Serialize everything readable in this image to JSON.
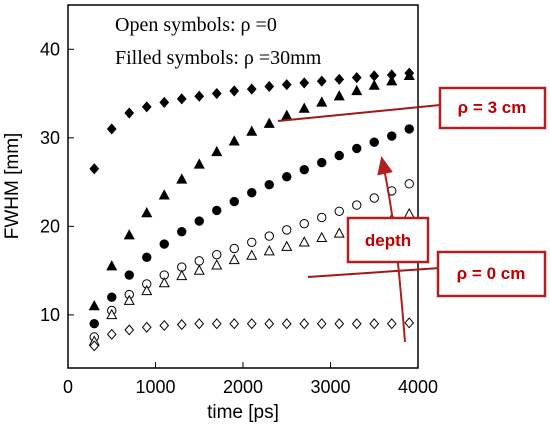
{
  "chart_data": {
    "type": "scatter",
    "x_label": "time  [ps]",
    "y_label": "FWHM  [mm]",
    "annotations": [
      "Open symbols: ρ =0",
      "Filled symbols: ρ =30mm",
      "ρ = 3 cm",
      "depth",
      "ρ = 0 cm"
    ],
    "xlim": [
      0,
      4000
    ],
    "ylim": [
      4,
      45
    ],
    "xticks": [
      0,
      1000,
      2000,
      3000,
      4000
    ],
    "yticks": [
      10,
      20,
      30,
      40
    ],
    "x": [
      300,
      500,
      700,
      900,
      1100,
      1300,
      1500,
      1700,
      1900,
      2100,
      2300,
      2500,
      2700,
      2900,
      3100,
      3300,
      3500,
      3700,
      3900
    ],
    "series": [
      {
        "marker": "diamond",
        "filled": true,
        "color": "#000000",
        "values": [
          26.5,
          31.0,
          32.8,
          33.5,
          34.0,
          34.4,
          34.7,
          35.0,
          35.3,
          35.5,
          35.8,
          36.0,
          36.2,
          36.4,
          36.6,
          36.8,
          37.0,
          37.1,
          37.3
        ]
      },
      {
        "marker": "triangle",
        "filled": true,
        "color": "#000000",
        "values": [
          11,
          15.5,
          19,
          21.5,
          23.5,
          25.3,
          27,
          28.4,
          29.6,
          30.7,
          31.6,
          32.5,
          33.3,
          34.0,
          34.7,
          35.3,
          35.9,
          36.4,
          37.0
        ]
      },
      {
        "marker": "circle",
        "filled": true,
        "color": "#000000",
        "values": [
          9,
          12,
          14.5,
          16.5,
          18,
          19.4,
          20.6,
          21.8,
          22.8,
          23.8,
          24.7,
          25.6,
          26.4,
          27.2,
          28.0,
          28.8,
          29.5,
          30.2,
          31.0
        ]
      },
      {
        "marker": "circle",
        "filled": false,
        "color": "#000000",
        "values": [
          7.5,
          10.5,
          12.3,
          13.5,
          14.5,
          15.4,
          16.1,
          16.8,
          17.5,
          18.2,
          18.9,
          19.6,
          20.3,
          21.0,
          21.7,
          22.4,
          23.2,
          24.0,
          24.8
        ]
      },
      {
        "marker": "triangle",
        "filled": false,
        "color": "#000000",
        "values": [
          7,
          10,
          11.6,
          12.7,
          13.6,
          14.4,
          15.0,
          15.6,
          16.2,
          16.7,
          17.2,
          17.7,
          18.2,
          18.7,
          19.2,
          19.7,
          20.2,
          20.8,
          21.4
        ]
      },
      {
        "marker": "diamond",
        "filled": false,
        "color": "#000000",
        "values": [
          6.5,
          7.8,
          8.3,
          8.6,
          8.8,
          8.9,
          9.0,
          9.0,
          9.0,
          9.0,
          9.0,
          9.0,
          9.0,
          9.0,
          9.0,
          9.0,
          9.0,
          9.0,
          9.1
        ]
      }
    ]
  }
}
